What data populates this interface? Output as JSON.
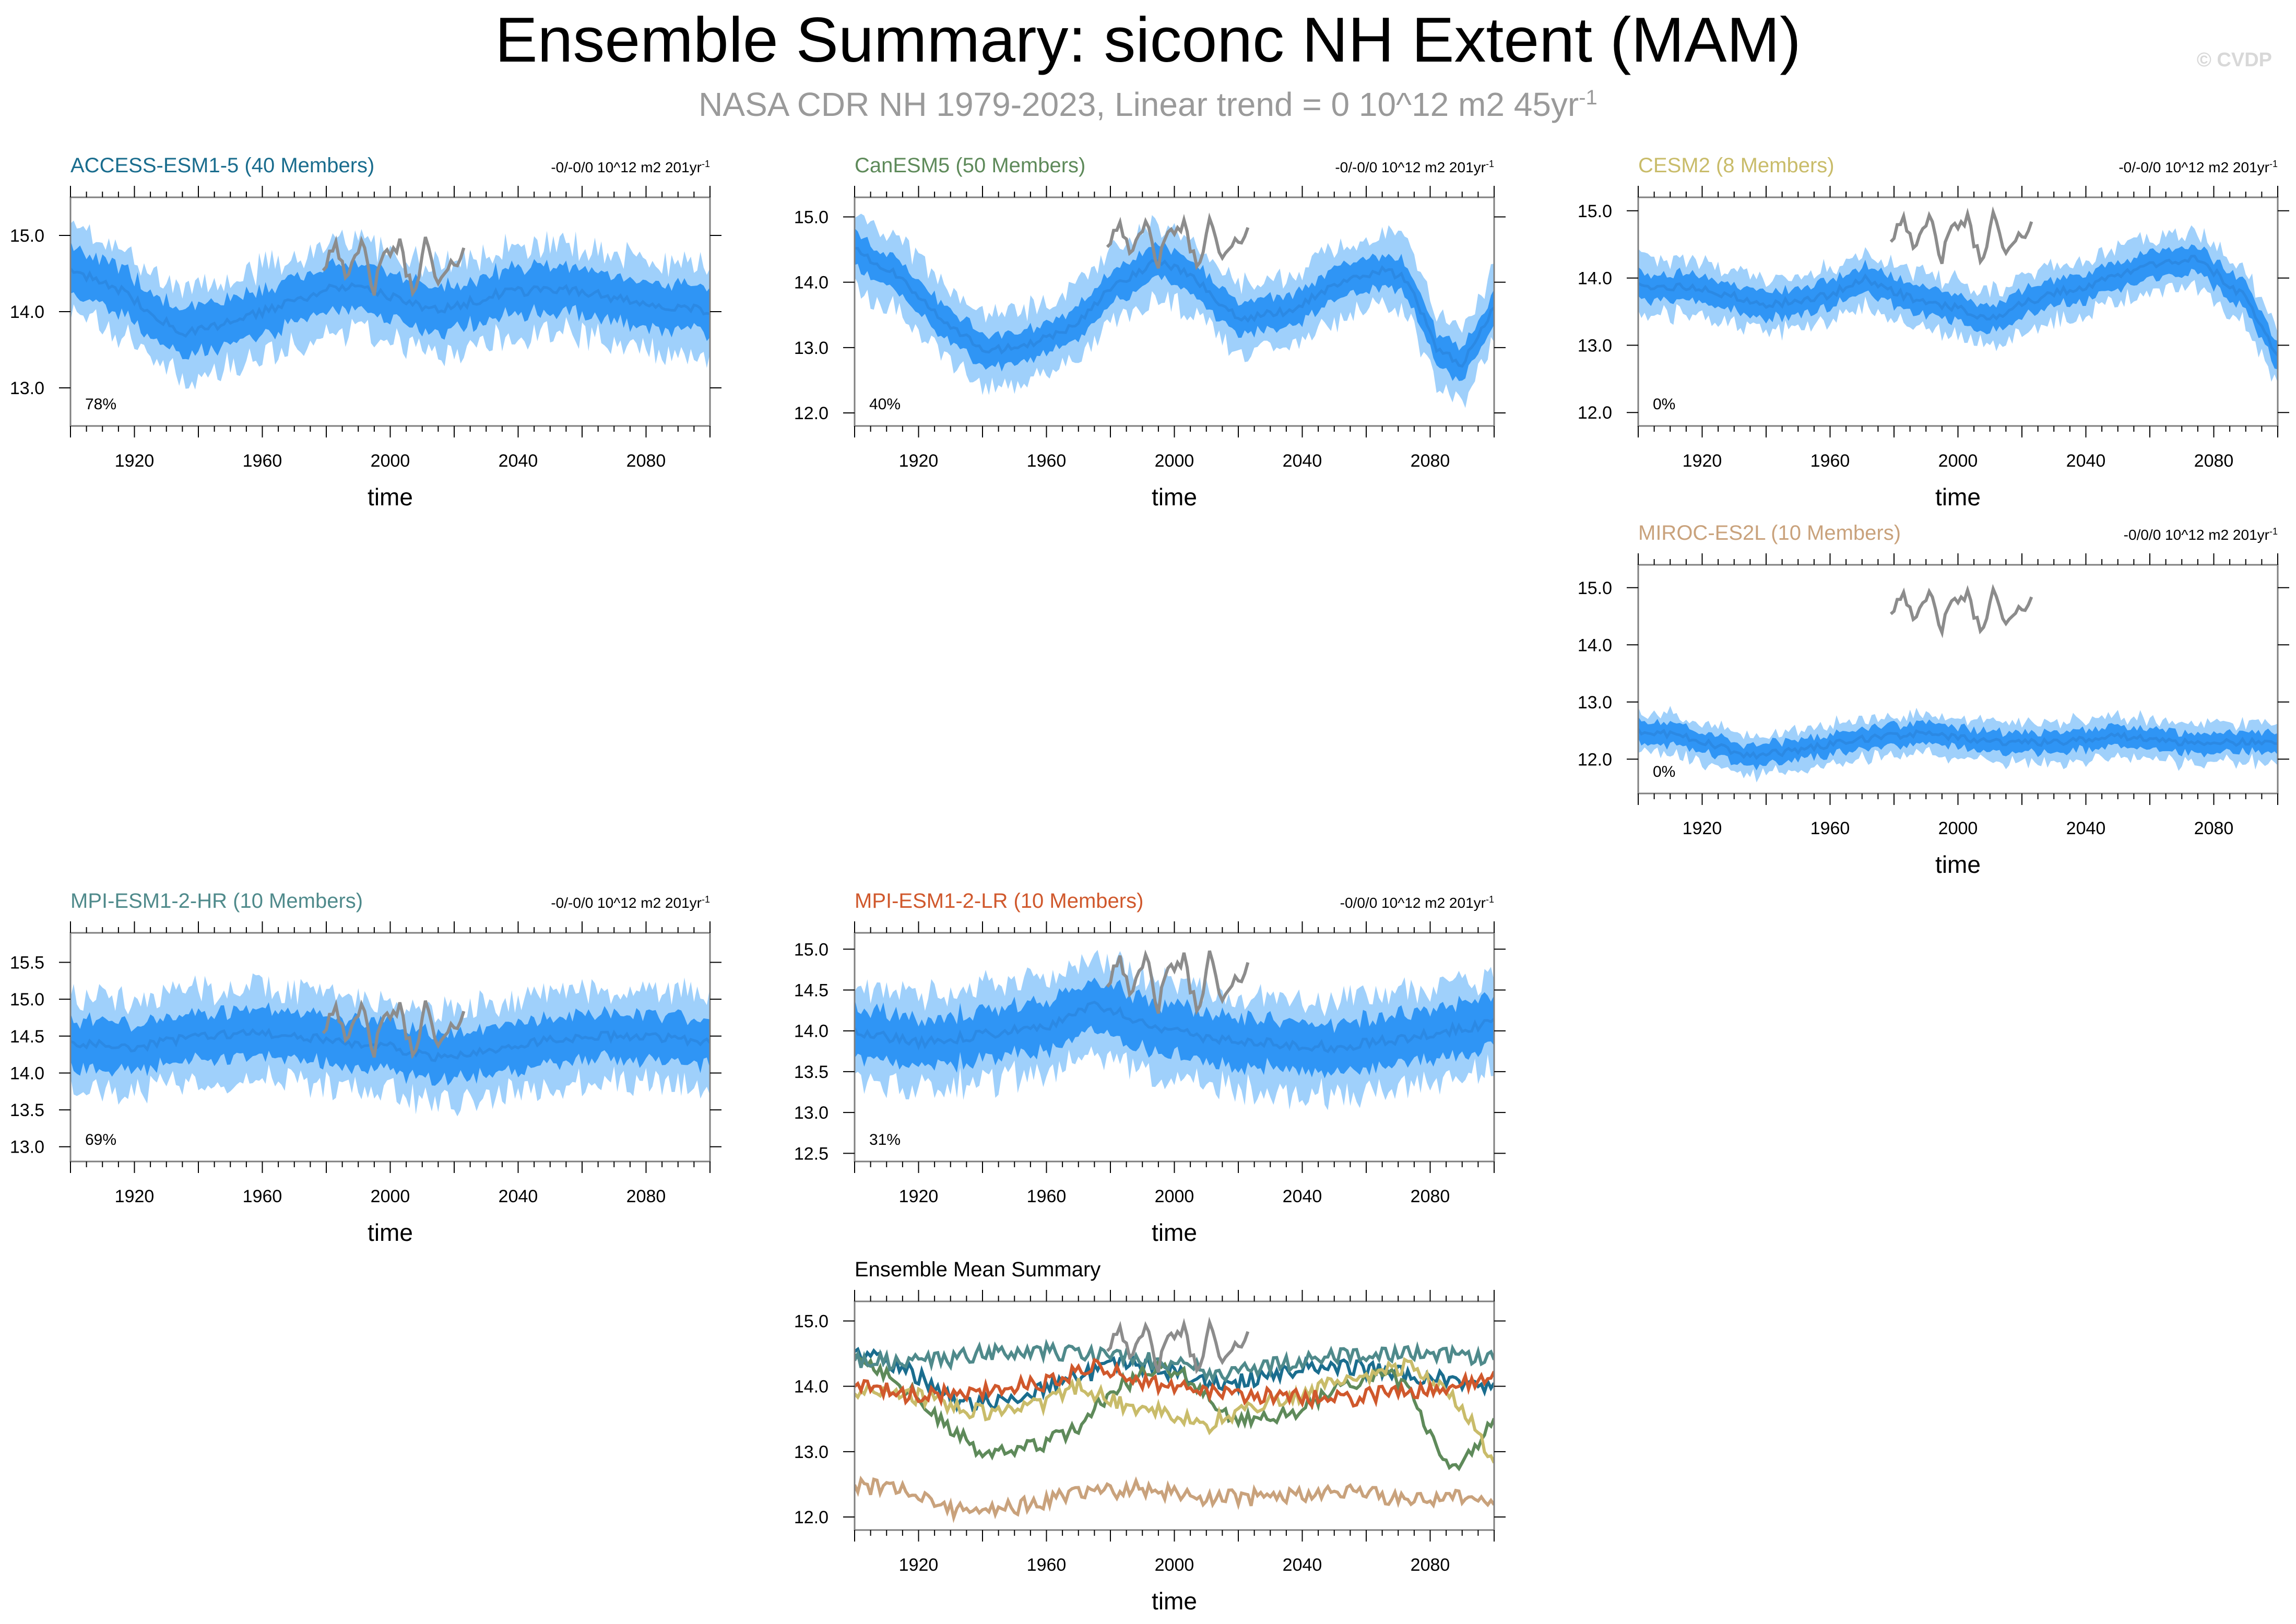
{
  "title": "Ensemble Summary: siconc NH Extent (MAM)",
  "subtitle_main": "NASA CDR NH 1979-2023, Linear trend = 0 10^12 m2 45yr",
  "subtitle_sup": "-1",
  "watermark": "© CVDP",
  "colors": {
    "band_outer": "#9fd0fb",
    "band_inner": "#2f95f5",
    "mean_line": "#2a86e0",
    "obs_line": "#8c8c8c",
    "frame": "#7f7f7f"
  },
  "chart_data": [
    {
      "type": "area",
      "id": "access",
      "title": "ACCESS-ESM1-5 (40 Members)",
      "title_color": "#1a6d8e",
      "trend_text": "-0/-0/0 10^12 m2 201yr",
      "trend_sup": "-1",
      "percent": "78%",
      "xlabel": "time",
      "xlim": [
        1900,
        2100
      ],
      "xticks": [
        "1920",
        "1960",
        "2000",
        "2040",
        "2080"
      ],
      "ylim": [
        12.5,
        15.5
      ],
      "yticks": [
        "13.0",
        "14.0",
        "15.0"
      ],
      "mean_knots": [
        [
          1900,
          14.55
        ],
        [
          1915,
          14.3
        ],
        [
          1935,
          13.7
        ],
        [
          1950,
          13.85
        ],
        [
          1970,
          14.15
        ],
        [
          1985,
          14.35
        ],
        [
          2000,
          14.2
        ],
        [
          2015,
          14.0
        ],
        [
          2035,
          14.25
        ],
        [
          2055,
          14.3
        ],
        [
          2075,
          14.15
        ],
        [
          2100,
          14.0
        ]
      ],
      "inner_half": 0.3,
      "outer_half": 0.58,
      "has_obs": true
    },
    {
      "type": "area",
      "id": "canesm5",
      "title": "CanESM5 (50 Members)",
      "title_color": "#5e8a5a",
      "trend_text": "-0/-0/0 10^12 m2 201yr",
      "trend_sup": "-1",
      "percent": "40%",
      "xlabel": "time",
      "xlim": [
        1900,
        2100
      ],
      "xticks": [
        "1920",
        "1960",
        "2000",
        "2040",
        "2080"
      ],
      "ylim": [
        11.8,
        15.3
      ],
      "yticks": [
        "12.0",
        "13.0",
        "14.0",
        "15.0"
      ],
      "mean_knots": [
        [
          1900,
          14.5
        ],
        [
          1915,
          14.05
        ],
        [
          1930,
          13.3
        ],
        [
          1942,
          12.95
        ],
        [
          1955,
          13.05
        ],
        [
          1968,
          13.3
        ],
        [
          1980,
          13.9
        ],
        [
          1995,
          14.35
        ],
        [
          2005,
          14.1
        ],
        [
          2020,
          13.45
        ],
        [
          2035,
          13.55
        ],
        [
          2050,
          13.95
        ],
        [
          2065,
          14.2
        ],
        [
          2073,
          14.05
        ],
        [
          2082,
          13.0
        ],
        [
          2090,
          12.75
        ],
        [
          2100,
          13.6
        ]
      ],
      "inner_half": 0.25,
      "outer_half": 0.55,
      "has_obs": true
    },
    {
      "type": "area",
      "id": "cesm2",
      "title": "CESM2 (8 Members)",
      "title_color": "#c9bc6a",
      "trend_text": "-0/-0/0 10^12 m2 201yr",
      "trend_sup": "-1",
      "percent": "0%",
      "xlabel": "time",
      "xlim": [
        1900,
        2100
      ],
      "xticks": [
        "1920",
        "1960",
        "2000",
        "2040",
        "2080"
      ],
      "ylim": [
        11.8,
        15.2
      ],
      "yticks": [
        "12.0",
        "13.0",
        "14.0",
        "15.0"
      ],
      "mean_knots": [
        [
          1900,
          13.9
        ],
        [
          1920,
          13.85
        ],
        [
          1940,
          13.6
        ],
        [
          1960,
          13.75
        ],
        [
          1970,
          14.0
        ],
        [
          1985,
          13.7
        ],
        [
          2000,
          13.55
        ],
        [
          2010,
          13.4
        ],
        [
          2025,
          13.7
        ],
        [
          2045,
          13.95
        ],
        [
          2065,
          14.25
        ],
        [
          2075,
          14.3
        ],
        [
          2090,
          13.7
        ],
        [
          2100,
          12.8
        ]
      ],
      "inner_half": 0.2,
      "outer_half": 0.4,
      "has_obs": true
    },
    {
      "type": "area",
      "id": "miroc",
      "title": "MIROC-ES2L (10 Members)",
      "title_color": "#c9a27c",
      "trend_text": "-0/0/0 10^12 m2 201yr",
      "trend_sup": "-1",
      "percent": "0%",
      "xlabel": "time",
      "xlim": [
        1900,
        2100
      ],
      "xticks": [
        "1920",
        "1960",
        "2000",
        "2040",
        "2080"
      ],
      "ylim": [
        11.4,
        15.4
      ],
      "yticks": [
        "12.0",
        "13.0",
        "14.0",
        "15.0"
      ],
      "mean_knots": [
        [
          1900,
          12.5
        ],
        [
          1915,
          12.4
        ],
        [
          1935,
          12.05
        ],
        [
          1950,
          12.15
        ],
        [
          1970,
          12.35
        ],
        [
          1990,
          12.45
        ],
        [
          2010,
          12.3
        ],
        [
          2030,
          12.3
        ],
        [
          2050,
          12.4
        ],
        [
          2070,
          12.3
        ],
        [
          2100,
          12.3
        ]
      ],
      "inner_half": 0.18,
      "outer_half": 0.35,
      "has_obs": true
    },
    {
      "type": "area",
      "id": "mpihr",
      "title": "MPI-ESM1-2-HR (10 Members)",
      "title_color": "#4f8a8b",
      "trend_text": "-0/-0/0 10^12 m2 201yr",
      "trend_sup": "-1",
      "percent": "69%",
      "xlabel": "time",
      "xlim": [
        1900,
        2100
      ],
      "xticks": [
        "1920",
        "1960",
        "2000",
        "2040",
        "2080"
      ],
      "ylim": [
        12.8,
        15.9
      ],
      "yticks": [
        "13.0",
        "13.5",
        "14.0",
        "14.5",
        "15.0",
        "15.5"
      ],
      "mean_knots": [
        [
          1900,
          14.4
        ],
        [
          1920,
          14.35
        ],
        [
          1940,
          14.5
        ],
        [
          1960,
          14.55
        ],
        [
          1980,
          14.45
        ],
        [
          2000,
          14.35
        ],
        [
          2015,
          14.2
        ],
        [
          2035,
          14.35
        ],
        [
          2060,
          14.5
        ],
        [
          2080,
          14.5
        ],
        [
          2100,
          14.4
        ]
      ],
      "inner_half": 0.32,
      "outer_half": 0.62,
      "has_obs": true
    },
    {
      "type": "area",
      "id": "mpilr",
      "title": "MPI-ESM1-2-LR (10 Members)",
      "title_color": "#d0582c",
      "trend_text": "-0/0/0 10^12 m2 201yr",
      "trend_sup": "-1",
      "percent": "31%",
      "xlabel": "time",
      "xlim": [
        1900,
        2100
      ],
      "xticks": [
        "1920",
        "1960",
        "2000",
        "2040",
        "2080"
      ],
      "ylim": [
        12.4,
        15.2
      ],
      "yticks": [
        "12.5",
        "13.0",
        "13.5",
        "14.0",
        "14.5",
        "15.0"
      ],
      "mean_knots": [
        [
          1900,
          14.0
        ],
        [
          1920,
          13.85
        ],
        [
          1940,
          13.95
        ],
        [
          1960,
          14.05
        ],
        [
          1975,
          14.35
        ],
        [
          1990,
          14.1
        ],
        [
          2010,
          13.9
        ],
        [
          2030,
          13.85
        ],
        [
          2050,
          13.8
        ],
        [
          2070,
          13.9
        ],
        [
          2085,
          14.0
        ],
        [
          2100,
          14.1
        ]
      ],
      "inner_half": 0.3,
      "outer_half": 0.58,
      "has_obs": true
    },
    {
      "type": "line",
      "id": "summary",
      "title": "Ensemble Mean Summary",
      "title_color": "#000000",
      "xlabel": "time",
      "xlim": [
        1900,
        2100
      ],
      "xticks": [
        "1920",
        "1960",
        "2000",
        "2040",
        "2080"
      ],
      "ylim": [
        11.8,
        15.3
      ],
      "yticks": [
        "12.0",
        "13.0",
        "14.0",
        "15.0"
      ],
      "series_ref": [
        "access",
        "canesm5",
        "cesm2",
        "miroc",
        "mpihr",
        "mpilr"
      ],
      "series_colors": [
        "#1a6d8e",
        "#5e8a5a",
        "#c9bc6a",
        "#c9a27c",
        "#4f8a8b",
        "#d0582c"
      ],
      "has_obs": true
    }
  ],
  "obs_knots": [
    [
      1979,
      14.6
    ],
    [
      1983,
      14.95
    ],
    [
      1987,
      14.4
    ],
    [
      1991,
      14.9
    ],
    [
      1995,
      14.3
    ],
    [
      1999,
      14.8
    ],
    [
      2003,
      14.85
    ],
    [
      2007,
      14.25
    ],
    [
      2011,
      14.9
    ],
    [
      2015,
      14.35
    ],
    [
      2019,
      14.55
    ],
    [
      2023,
      14.85
    ]
  ]
}
